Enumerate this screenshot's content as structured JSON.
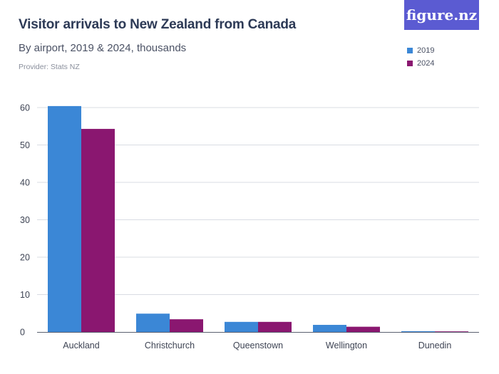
{
  "header": {
    "title": "Visitor arrivals to New Zealand from Canada",
    "subtitle": "By airport, 2019 & 2024, thousands",
    "provider": "Provider: Stats NZ",
    "logo_text": "figure.nz"
  },
  "chart_data": {
    "type": "bar",
    "title": "Visitor arrivals to New Zealand from Canada",
    "subtitle": "By airport, 2019 & 2024, thousands",
    "xlabel": "",
    "ylabel": "",
    "categories": [
      "Auckland",
      "Christchurch",
      "Queenstown",
      "Wellington",
      "Dunedin"
    ],
    "series": [
      {
        "name": "2019",
        "color": "#3b87d6",
        "values": [
          60.4,
          4.9,
          2.7,
          1.9,
          0.2
        ]
      },
      {
        "name": "2024",
        "color": "#8a1770",
        "values": [
          54.3,
          3.4,
          2.7,
          1.4,
          0.1
        ]
      }
    ],
    "ylim": [
      0,
      60
    ],
    "yticks": [
      0,
      10,
      20,
      30,
      40,
      50,
      60
    ],
    "grid": true,
    "legend": "top-right"
  }
}
